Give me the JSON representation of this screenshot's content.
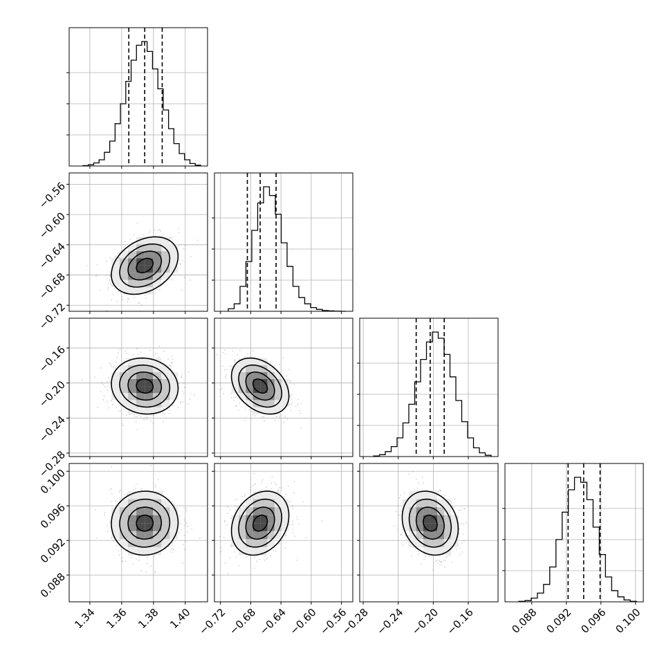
{
  "chart_data": {
    "type": "corner",
    "grid": true,
    "parameters": [
      {
        "range": [
          1.327,
          1.414
        ],
        "ticks": [
          1.34,
          1.36,
          1.38,
          1.4
        ],
        "tick_labels": [
          "1.34",
          "1.36",
          "1.38",
          "1.40"
        ],
        "quantiles": [
          1.3645,
          1.3745,
          1.3855
        ],
        "histogram": [
          0.003,
          0.01,
          0.025,
          0.05,
          0.11,
          0.2,
          0.34,
          0.5,
          0.68,
          0.85,
          0.97,
          1.0,
          0.92,
          0.78,
          0.62,
          0.45,
          0.3,
          0.18,
          0.1,
          0.05,
          0.02,
          0.007
        ]
      },
      {
        "range": [
          -0.728,
          -0.545
        ],
        "ticks": [
          -0.72,
          -0.68,
          -0.64,
          -0.6,
          -0.56
        ],
        "tick_labels": [
          "−0.72",
          "−0.68",
          "−0.64",
          "−0.60",
          "−0.56"
        ],
        "quantiles": [
          -0.6845,
          -0.6675,
          -0.6465
        ],
        "histogram": [
          0.02,
          0.06,
          0.2,
          0.4,
          0.65,
          0.87,
          1.0,
          0.93,
          0.78,
          0.55,
          0.36,
          0.2,
          0.11,
          0.06,
          0.03,
          0.015,
          0.006,
          0.003,
          0.001,
          0.0
        ]
      },
      {
        "range": [
          -0.284,
          -0.126
        ],
        "ticks": [
          -0.28,
          -0.24,
          -0.2,
          -0.16
        ],
        "tick_labels": [
          "−0.28",
          "−0.24",
          "−0.20",
          "−0.16"
        ],
        "quantiles": [
          -0.2195,
          -0.2035,
          -0.1875
        ],
        "histogram": [
          0.005,
          0.015,
          0.04,
          0.08,
          0.15,
          0.27,
          0.42,
          0.6,
          0.78,
          0.92,
          1.0,
          0.95,
          0.82,
          0.64,
          0.45,
          0.28,
          0.15,
          0.07,
          0.03,
          0.01
        ]
      },
      {
        "range": [
          0.0849,
          0.1009
        ],
        "ticks": [
          0.088,
          0.092,
          0.096,
          0.1
        ],
        "tick_labels": [
          "0.088",
          "0.092",
          "0.096",
          "0.100"
        ],
        "quantiles": [
          0.0922,
          0.094,
          0.0959
        ],
        "histogram": [
          0.004,
          0.01,
          0.03,
          0.07,
          0.14,
          0.28,
          0.5,
          0.72,
          0.9,
          1.0,
          0.96,
          0.82,
          0.6,
          0.38,
          0.2,
          0.09,
          0.04,
          0.015,
          0.004
        ]
      }
    ],
    "correlations": {
      "1_0": 0.32,
      "2_0": -0.08,
      "2_1": -0.35,
      "3_0": 0.02,
      "3_1": 0.24,
      "3_2": -0.18
    },
    "contour_levels_sigma": [
      0.5,
      1.0,
      1.5,
      2.0
    ]
  }
}
